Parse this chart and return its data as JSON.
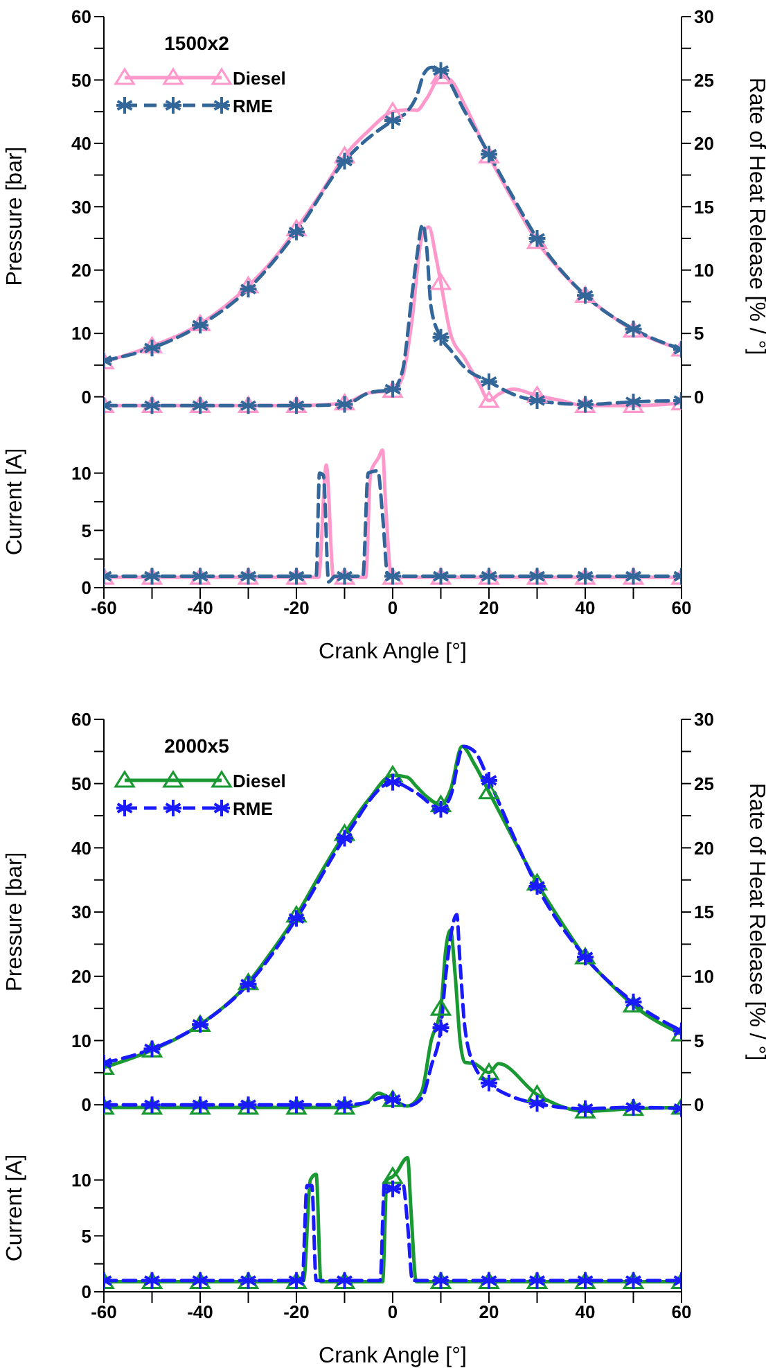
{
  "chart_data": [
    {
      "type": "line",
      "legend_title": "1500x2",
      "ylabel": "Pressure [bar]",
      "y2label": "Rate of Heat Release [% / °]",
      "xlim": [
        -60,
        60
      ],
      "ylim": [
        -3,
        60
      ],
      "yticks": [
        0,
        {
          "value": 5,
          "label": null
        },
        10,
        {
          "value": 15,
          "label": null
        },
        20,
        {
          "value": 25,
          "label": null
        },
        30,
        {
          "value": 35,
          "label": null
        },
        40,
        {
          "value": 45,
          "label": null
        },
        50,
        {
          "value": 55,
          "label": null
        },
        60
      ],
      "y2lim": [
        -1.5,
        30
      ],
      "y2ticks": [
        0,
        {
          "value": 2.5,
          "label": null
        },
        5,
        {
          "value": 7.5,
          "label": null
        },
        10,
        {
          "value": 12.5,
          "label": null
        },
        15,
        {
          "value": 17.5,
          "label": null
        },
        20,
        {
          "value": 22.5,
          "label": null
        },
        25,
        {
          "value": 27.5,
          "label": null
        },
        30
      ],
      "tick_labels": "y",
      "legend": "top left",
      "series": [
        {
          "name": "Diesel",
          "color": "#ff99cc",
          "marker": "triangle",
          "line_style": "solid",
          "x": [
            -60,
            -50,
            -40,
            -30,
            -25,
            -20,
            -15,
            -10,
            -5,
            0,
            3,
            5,
            7,
            10,
            12,
            15,
            20,
            25,
            30,
            35,
            40,
            45,
            50,
            55,
            60
          ],
          "values": [
            5.5,
            8,
            11.5,
            17.5,
            21.5,
            26.5,
            32,
            38,
            42,
            45,
            45.3,
            45.2,
            47,
            50.5,
            50,
            46,
            38,
            31,
            24.5,
            19.8,
            16,
            13,
            10.5,
            8.8,
            7.5
          ]
        },
        {
          "name": "RME",
          "color": "#336699",
          "marker": "cross",
          "line_style": "dashed",
          "x": [
            -60,
            -50,
            -40,
            -30,
            -20,
            -10,
            0,
            3,
            5,
            6.5,
            8,
            10,
            15,
            20,
            25,
            30,
            40,
            50,
            60
          ],
          "values": [
            5.7,
            7.7,
            11.3,
            17,
            26,
            37.2,
            43.6,
            45,
            47.5,
            51,
            52,
            51.5,
            45,
            38.3,
            31.5,
            25,
            16,
            10.7,
            7.5
          ]
        },
        {
          "color": "#ff99cc",
          "marker": "triangle",
          "line_style": "solid",
          "axis": "y2",
          "x": [
            -60,
            -50,
            -40,
            -30,
            -20,
            -10,
            -5,
            0,
            2,
            4,
            6,
            7.5,
            9,
            10,
            12,
            15,
            18,
            20,
            22,
            25,
            30,
            35,
            40,
            50,
            60
          ],
          "values": [
            -0.7,
            -0.7,
            -0.7,
            -0.7,
            -0.7,
            -0.5,
            0.3,
            0.5,
            1.5,
            6,
            12.5,
            13.4,
            11,
            9,
            5,
            3,
            1,
            -0.3,
            0.2,
            0.6,
            0.1,
            -0.3,
            -0.7,
            -0.7,
            -0.5
          ]
        },
        {
          "color": "#336699",
          "marker": "cross",
          "line_style": "dashed",
          "axis": "y2",
          "x": [
            -60,
            -50,
            -40,
            -30,
            -20,
            -10,
            -5,
            0,
            2,
            4,
            5,
            6.2,
            7,
            8,
            10,
            12,
            15,
            20,
            25,
            30,
            40,
            50,
            60
          ],
          "values": [
            -0.7,
            -0.7,
            -0.7,
            -0.7,
            -0.7,
            -0.6,
            0.3,
            0.6,
            2,
            8,
            11,
            13.6,
            12,
            7,
            4.7,
            3.7,
            2.3,
            1.2,
            0.2,
            -0.3,
            -0.6,
            -0.4,
            -0.3
          ]
        }
      ]
    },
    {
      "type": "line",
      "xlabel": "Crank Angle [°]",
      "ylabel": "Current [A]",
      "xlim": [
        -60,
        60
      ],
      "xticks": [
        -60,
        {
          "value": -50,
          "label": null
        },
        -40,
        {
          "value": -30,
          "label": null
        },
        -20,
        {
          "value": -10,
          "label": null
        },
        0,
        {
          "value": 10,
          "label": null
        },
        20,
        {
          "value": 30,
          "label": null
        },
        40,
        {
          "value": 50,
          "label": null
        },
        60
      ],
      "ylim": [
        0,
        15
      ],
      "yticks": [
        0,
        {
          "value": 2.5,
          "label": null
        },
        5,
        {
          "value": 7.5,
          "label": null
        },
        10
      ],
      "series": [
        {
          "color": "#ff99cc",
          "marker": "triangle",
          "line_style": "solid",
          "x": [
            -60,
            -50,
            -40,
            -30,
            -20,
            -15.4,
            -13.8,
            -12.3,
            -10,
            -5.6,
            -4.6,
            -3,
            -2.1,
            -1.5,
            -0.2,
            0,
            10,
            20,
            30,
            40,
            50,
            60
          ],
          "values": [
            0.9,
            0.9,
            0.9,
            0.9,
            0.9,
            0.9,
            10.7,
            0.9,
            0.9,
            0.9,
            10,
            11.3,
            12,
            7.5,
            0.9,
            0.9,
            0.9,
            0.9,
            0.9,
            0.9,
            0.9,
            0.9
          ]
        },
        {
          "color": "#336699",
          "marker": "cross",
          "line_style": "dashed",
          "x": [
            -60,
            -50,
            -40,
            -30,
            -20,
            -15.9,
            -15.2,
            -14.4,
            -13.3,
            -12,
            -10,
            -6.2,
            -5.1,
            -3.1,
            -2.1,
            -1,
            0,
            10,
            20,
            30,
            40,
            50,
            60
          ],
          "values": [
            1,
            1,
            1,
            1,
            1,
            1,
            10,
            9.8,
            0.5,
            1,
            1,
            1,
            10,
            10.2,
            6.3,
            1,
            1,
            1,
            1,
            1,
            1,
            1,
            1
          ]
        }
      ]
    },
    {
      "type": "line",
      "legend_title": "2000x5",
      "ylabel": "Pressure [bar]",
      "y2label": "Rate of Heat Release [% / °]",
      "xlim": [
        -60,
        60
      ],
      "ylim": [
        -3,
        60
      ],
      "yticks": [
        0,
        {
          "value": 5,
          "label": null
        },
        10,
        {
          "value": 15,
          "label": null
        },
        20,
        {
          "value": 25,
          "label": null
        },
        30,
        {
          "value": 35,
          "label": null
        },
        40,
        {
          "value": 45,
          "label": null
        },
        50,
        {
          "value": 55,
          "label": null
        },
        60
      ],
      "y2lim": [
        -1.5,
        30
      ],
      "y2ticks": [
        0,
        {
          "value": 2.5,
          "label": null
        },
        5,
        {
          "value": 7.5,
          "label": null
        },
        10,
        {
          "value": 12.5,
          "label": null
        },
        15,
        {
          "value": 17.5,
          "label": null
        },
        20,
        {
          "value": 22.5,
          "label": null
        },
        25,
        {
          "value": 27.5,
          "label": null
        },
        30
      ],
      "tick_labels": "y",
      "legend": "top left",
      "series": [
        {
          "name": "Diesel",
          "color": "#1a9933",
          "marker": "triangle",
          "line_style": "solid",
          "x": [
            -60,
            -50,
            -40,
            -30,
            -25,
            -20,
            -15,
            -10,
            -5,
            0,
            3,
            5,
            7,
            10,
            12,
            14.4,
            17,
            20,
            25,
            30,
            35,
            40,
            45,
            50,
            60
          ],
          "values": [
            5.8,
            8.5,
            12.5,
            19,
            24,
            29.5,
            36,
            42.2,
            47.5,
            51.3,
            51,
            49.5,
            48,
            46.7,
            49,
            55.8,
            53,
            48.7,
            41.5,
            34.5,
            28.5,
            23,
            19,
            15.5,
            11
          ]
        },
        {
          "name": "RME",
          "color": "#1a1aff",
          "marker": "cross",
          "line_style": "dashed",
          "x": [
            -60,
            -50,
            -40,
            -30,
            -20,
            -10,
            0,
            5,
            10,
            12,
            14.7,
            17,
            20,
            25,
            30,
            40,
            50,
            60
          ],
          "values": [
            6.5,
            8.7,
            12.5,
            18.8,
            29,
            41.5,
            50.2,
            48.5,
            46,
            48,
            55.8,
            55,
            50.5,
            42,
            34,
            23,
            16,
            11.5
          ]
        },
        {
          "color": "#1a9933",
          "marker": "triangle",
          "line_style": "solid",
          "axis": "y2",
          "x": [
            -60,
            -50,
            -40,
            -30,
            -20,
            -10,
            -5,
            -3,
            0,
            3,
            6,
            8,
            10,
            11,
            12,
            13,
            14,
            15,
            17,
            20,
            22,
            30,
            40,
            50,
            60
          ],
          "values": [
            -0.2,
            -0.2,
            -0.2,
            -0.2,
            -0.2,
            -0.2,
            0.3,
            0.9,
            0.4,
            -0.1,
            1,
            5,
            7.5,
            12,
            13.6,
            10,
            5,
            3.3,
            3.2,
            2.5,
            3.2,
            0.8,
            -0.5,
            -0.3,
            -0.2
          ]
        },
        {
          "color": "#1a1aff",
          "marker": "cross",
          "line_style": "dashed",
          "axis": "y2",
          "x": [
            -60,
            -50,
            -40,
            -30,
            -20,
            -10,
            -5,
            -2,
            0,
            3,
            6,
            8,
            10,
            11,
            12,
            13.3,
            14,
            15,
            17,
            20,
            25,
            30,
            40,
            50,
            60
          ],
          "values": [
            0,
            0,
            0,
            0,
            0,
            0,
            0.2,
            0.6,
            0.4,
            -0.1,
            0.5,
            3,
            6,
            10,
            13,
            14.8,
            11,
            6,
            3,
            1.7,
            0.6,
            0.1,
            -0.3,
            -0.2,
            -0.3
          ]
        }
      ]
    },
    {
      "type": "line",
      "xlabel": "Crank Angle [°]",
      "ylabel": "Current [A]",
      "xlim": [
        -60,
        60
      ],
      "xticks": [
        -60,
        {
          "value": -50,
          "label": null
        },
        -40,
        {
          "value": -30,
          "label": null
        },
        -20,
        {
          "value": -10,
          "label": null
        },
        0,
        {
          "value": 10,
          "label": null
        },
        20,
        {
          "value": 30,
          "label": null
        },
        40,
        {
          "value": 50,
          "label": null
        },
        60
      ],
      "ylim": [
        0,
        15
      ],
      "yticks": [
        0,
        {
          "value": 2.5,
          "label": null
        },
        5,
        {
          "value": 7.5,
          "label": null
        },
        10
      ],
      "series": [
        {
          "color": "#1a9933",
          "marker": "triangle",
          "line_style": "solid",
          "x": [
            -60,
            -50,
            -40,
            -30,
            -20,
            -18.5,
            -17.1,
            -15.9,
            -14.9,
            -10,
            -2.1,
            -1.2,
            0,
            0.5,
            3.1,
            3.8,
            4.9,
            10,
            20,
            30,
            40,
            50,
            60
          ],
          "values": [
            0.9,
            0.9,
            0.9,
            0.9,
            0.9,
            1,
            10,
            10.5,
            0.9,
            0.9,
            0.9,
            10,
            10.3,
            10.5,
            12,
            7.3,
            0.9,
            0.9,
            0.9,
            0.9,
            0.9,
            0.9,
            0.9
          ]
        },
        {
          "color": "#1a1aff",
          "marker": "cross",
          "line_style": "dashed",
          "x": [
            -60,
            -50,
            -40,
            -30,
            -20,
            -18.8,
            -17.8,
            -16.8,
            -15.9,
            -10,
            -2.6,
            -1.7,
            0,
            2.1,
            3.1,
            4.1,
            10,
            20,
            30,
            40,
            50,
            60
          ],
          "values": [
            1,
            1,
            1,
            1,
            1,
            1,
            9.5,
            9.5,
            1,
            1,
            1,
            9.8,
            9.2,
            9.7,
            6,
            1,
            1,
            1,
            1,
            1,
            1,
            1
          ]
        }
      ]
    }
  ]
}
